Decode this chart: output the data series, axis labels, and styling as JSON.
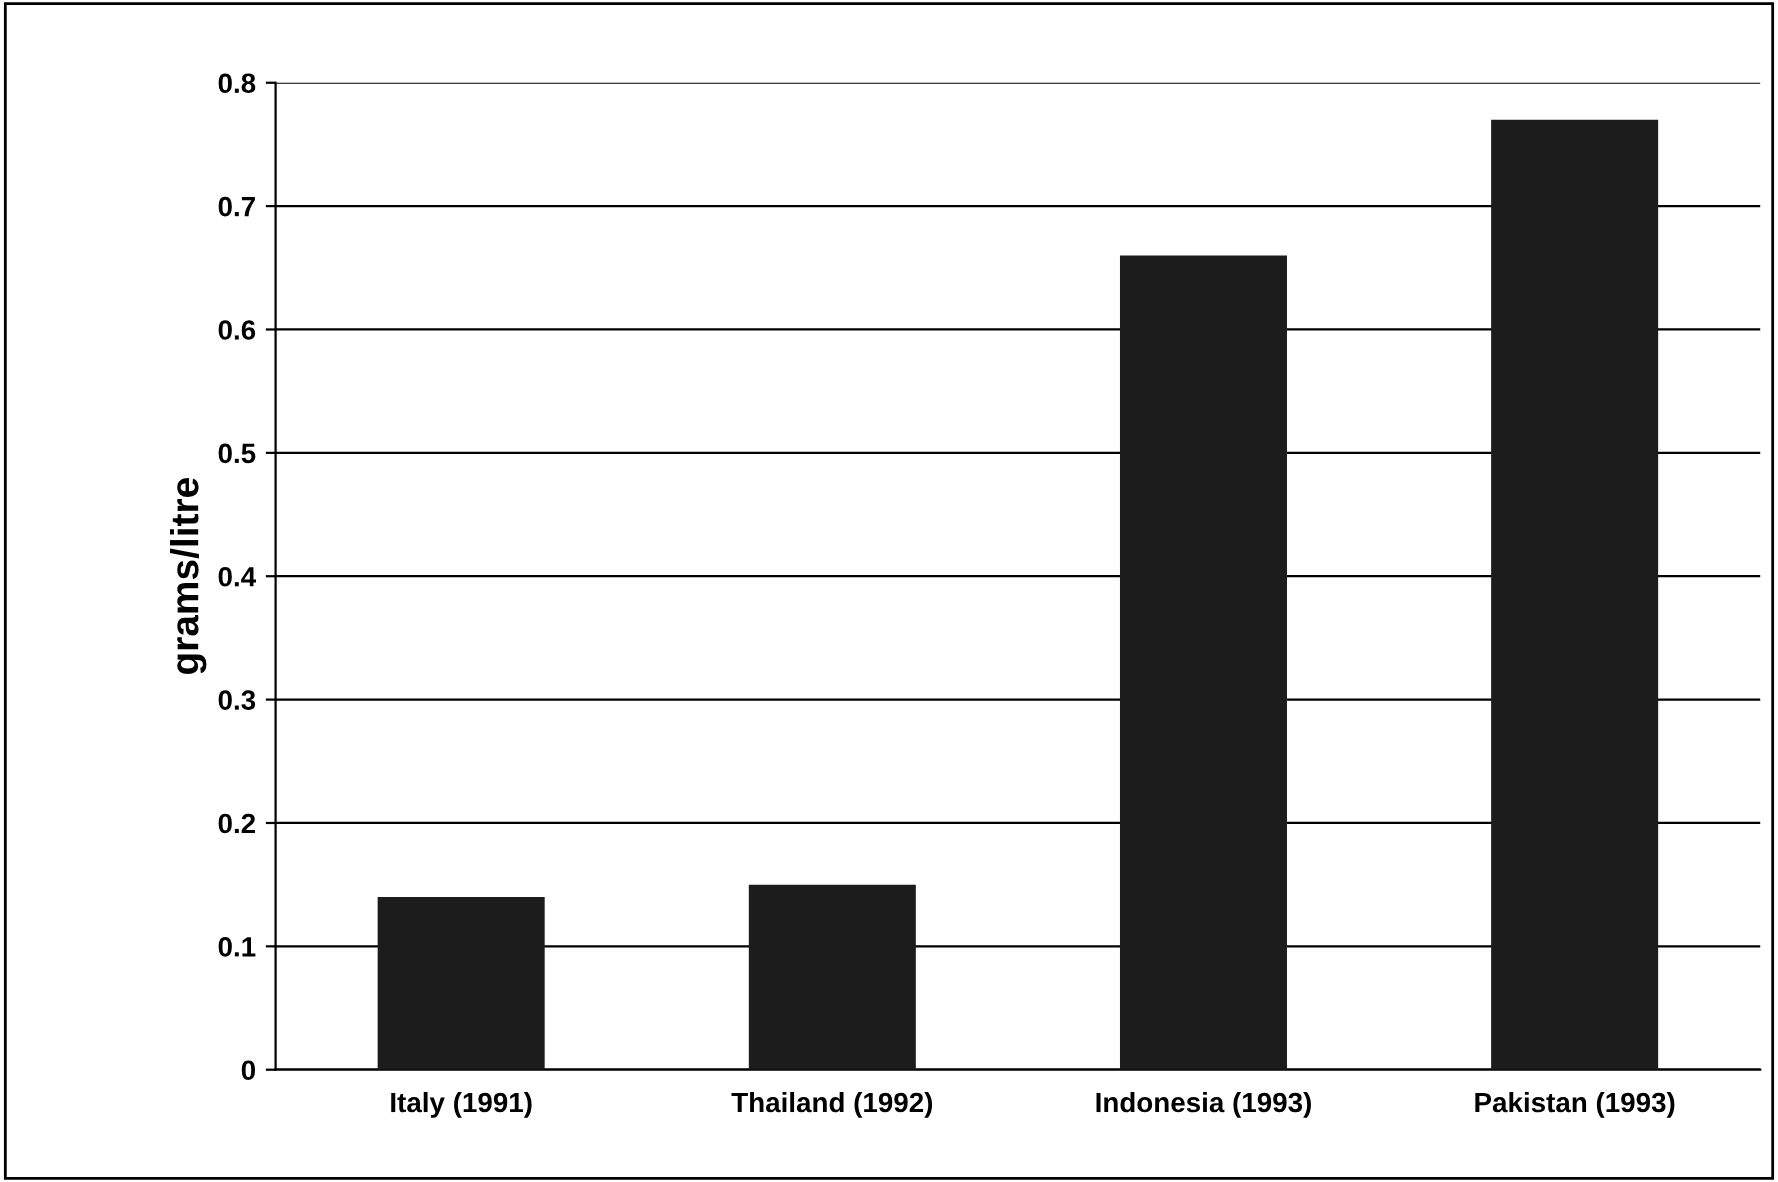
{
  "chart_data": {
    "type": "bar",
    "ylabel": "grams/litre",
    "categories": [
      "Italy (1991)",
      "Thailand (1992)",
      "Indonesia (1993)",
      "Pakistan (1993)"
    ],
    "values": [
      0.14,
      0.15,
      0.66,
      0.77
    ],
    "color": "#1c1c1c",
    "ylim": [
      0,
      0.8
    ],
    "yticks": [
      0,
      0.1,
      0.2,
      0.3,
      0.4,
      0.5,
      0.6,
      0.7,
      0.8
    ],
    "grid": "y",
    "legend": false
  }
}
